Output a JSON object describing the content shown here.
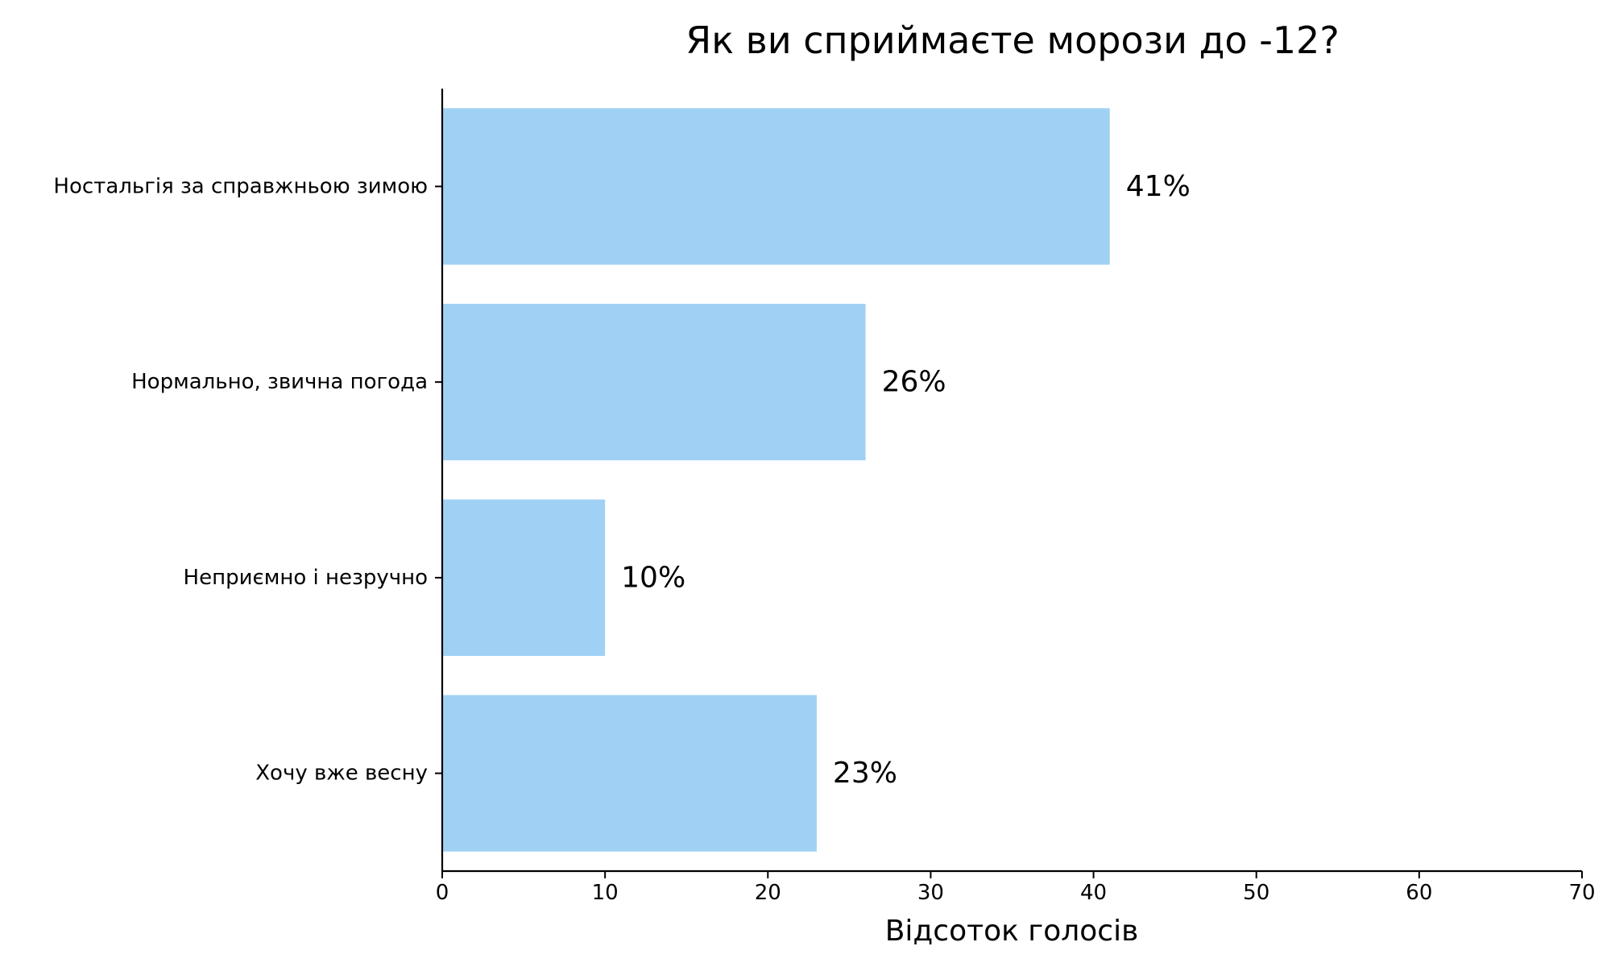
{
  "chart_data": {
    "type": "bar",
    "orientation": "horizontal",
    "title": "Як ви сприймаєте морози до -12?",
    "xlabel": "Відсоток голосів",
    "ylabel": "",
    "categories": [
      "Ностальгія за справжньою зимою",
      "Нормально, звична погода",
      "Неприємно і незручно",
      "Хочу вже весну"
    ],
    "values": [
      41,
      26,
      10,
      23
    ],
    "data_labels": [
      "41%",
      "26%",
      "10%",
      "23%"
    ],
    "xlim": [
      0,
      70
    ],
    "xticks": [
      0,
      10,
      20,
      30,
      40,
      50,
      60,
      70
    ],
    "xtick_labels": [
      "0",
      "10",
      "20",
      "30",
      "40",
      "50",
      "60",
      "70"
    ],
    "bar_color": "#a0d1f5",
    "grid": false,
    "legend": "none"
  }
}
